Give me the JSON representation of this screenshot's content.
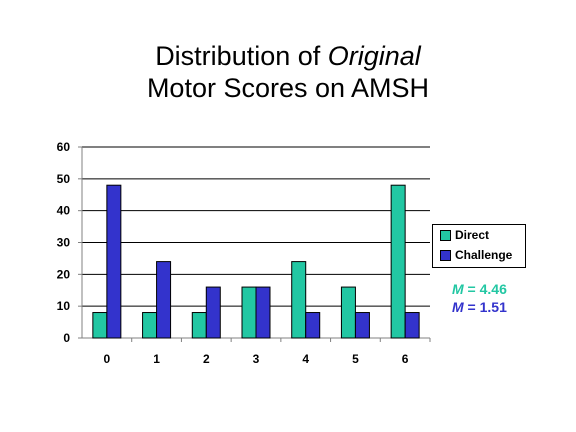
{
  "title": {
    "part1": "Distribution of ",
    "part2_italic": "Original",
    "line2": "Motor Scores on AMSH"
  },
  "colors": {
    "direct": "#22C7A3",
    "challenge": "#3333CC",
    "axis": "#808080",
    "grid": "#000000"
  },
  "chart_data": {
    "type": "bar",
    "title": "Distribution of Original Motor Scores on AMSH",
    "categories": [
      "0",
      "1",
      "2",
      "3",
      "4",
      "5",
      "6"
    ],
    "series": [
      {
        "name": "Direct",
        "values": [
          8,
          8,
          8,
          16,
          24,
          16,
          48
        ]
      },
      {
        "name": "Challenge",
        "values": [
          48,
          24,
          16,
          16,
          8,
          8,
          8
        ]
      }
    ],
    "ylim": [
      0,
      60
    ],
    "yticks": [
      0,
      10,
      20,
      30,
      40,
      50,
      60
    ],
    "grid": true,
    "legend": "right"
  },
  "stats": [
    {
      "label": "M",
      "value": " = 4.46"
    },
    {
      "label": "M",
      "value": " = 1.51"
    }
  ]
}
